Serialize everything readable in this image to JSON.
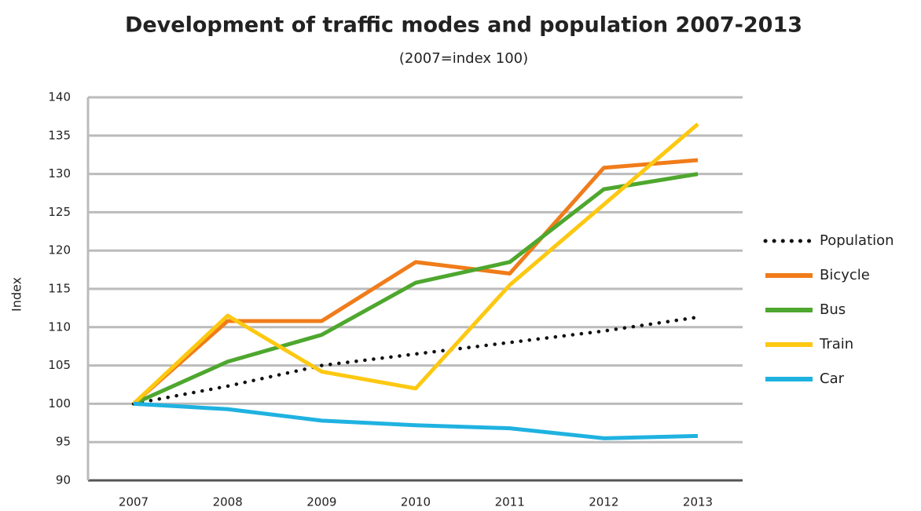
{
  "chart_data": {
    "type": "line",
    "title": "Development of traffic modes and population 2007-2013",
    "subtitle": "(2007=index 100)",
    "y_label": "Index",
    "categories": [
      "2007",
      "2008",
      "2009",
      "2010",
      "2011",
      "2012",
      "2013"
    ],
    "series": [
      {
        "name": "Population",
        "color": "#111111",
        "style": "dotted",
        "values": [
          100,
          102.3,
          105,
          106.5,
          108,
          109.5,
          111.3
        ]
      },
      {
        "name": "Bicycle",
        "color": "#f07c1a",
        "values": [
          100,
          110.8,
          110.8,
          118.5,
          117,
          130.8,
          131.8
        ]
      },
      {
        "name": "Bus",
        "color": "#4ea72e",
        "values": [
          100,
          105.5,
          109,
          115.8,
          118.5,
          128,
          130
        ]
      },
      {
        "name": "Train",
        "color": "#fdc811",
        "values": [
          100,
          111.5,
          104.2,
          102,
          115.5,
          126,
          136.5
        ]
      },
      {
        "name": "Car",
        "color": "#1fb2e0",
        "values": [
          100,
          99.3,
          97.8,
          97.2,
          96.8,
          95.5,
          95.8
        ]
      }
    ],
    "ylim": [
      90,
      140
    ],
    "yticks": [
      90,
      95,
      100,
      105,
      110,
      115,
      120,
      125,
      130,
      135,
      140
    ],
    "grid": true,
    "legend": "right"
  }
}
